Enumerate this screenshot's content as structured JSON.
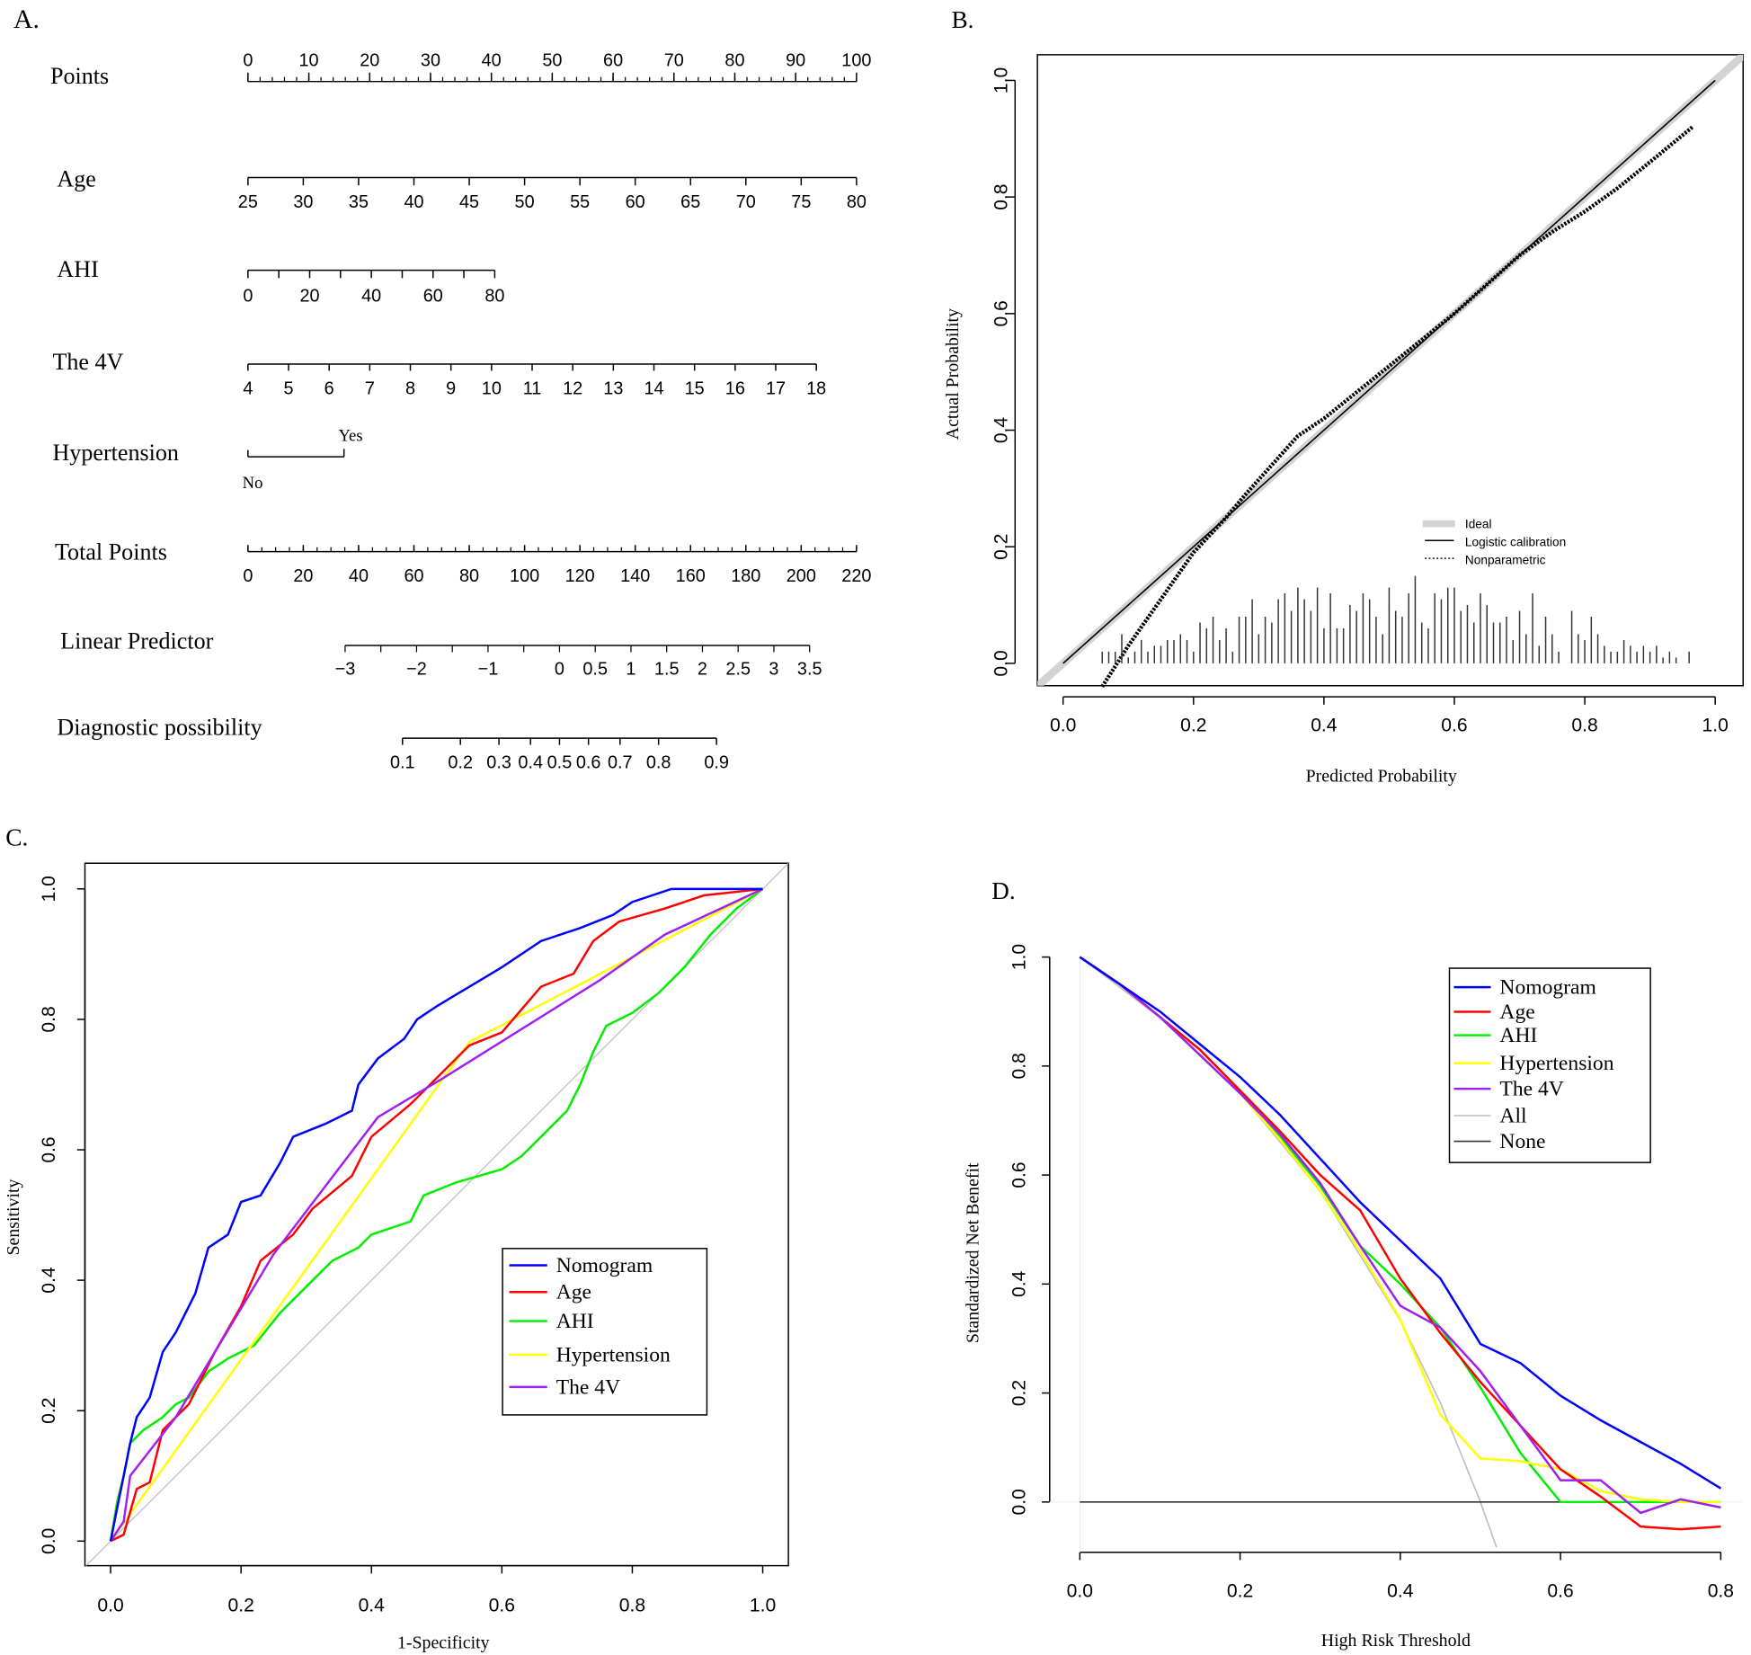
{
  "chart_data": [
    {
      "panel": "A.",
      "type": "nomogram",
      "rows": [
        {
          "label": "Points",
          "min": 0,
          "max": 100,
          "ticks": [
            0,
            10,
            20,
            30,
            40,
            50,
            60,
            70,
            80,
            90,
            100
          ]
        },
        {
          "label": "Age",
          "min": 25,
          "max": 80,
          "ticks": [
            25,
            30,
            35,
            40,
            45,
            50,
            55,
            60,
            65,
            70,
            75,
            80
          ]
        },
        {
          "label": "AHI",
          "min": 0,
          "max": 80,
          "ticks": [
            0,
            20,
            40,
            60,
            80
          ]
        },
        {
          "label": "The 4V",
          "min": 4,
          "max": 18,
          "ticks": [
            4,
            5,
            6,
            7,
            8,
            9,
            10,
            11,
            12,
            13,
            14,
            15,
            16,
            17,
            18
          ]
        },
        {
          "label": "Hypertension",
          "categories": [
            "No",
            "Yes"
          ]
        },
        {
          "label": "Total Points",
          "min": 0,
          "max": 220,
          "ticks": [
            0,
            20,
            40,
            60,
            80,
            100,
            120,
            140,
            160,
            180,
            200,
            220
          ]
        },
        {
          "label": "Linear Predictor",
          "min": -3,
          "max": 3.5,
          "ticks": [
            "−3",
            "−2",
            "−1",
            "0",
            "0.5",
            "1",
            "1.5",
            "2",
            "2.5",
            "3",
            "3.5"
          ],
          "tick_values": [
            -3,
            -2,
            -1,
            0,
            0.5,
            1,
            1.5,
            2,
            2.5,
            3,
            3.5
          ]
        },
        {
          "label": "Diagnostic possibility",
          "ticks": [
            "0.1",
            "0.2",
            "0.3",
            "0.4",
            "0.5",
            "0.6",
            "0.7",
            "0.8",
            "0.9"
          ],
          "tick_values": [
            0.1,
            0.2,
            0.3,
            0.4,
            0.5,
            0.6,
            0.7,
            0.8,
            0.9
          ]
        }
      ]
    },
    {
      "panel": "B.",
      "type": "line",
      "xlabel": "Predicted Probability",
      "ylabel": "Actual Probability",
      "xlim": [
        0,
        1
      ],
      "ylim": [
        0,
        1
      ],
      "xticks": [
        "0.0",
        "0.2",
        "0.4",
        "0.6",
        "0.8",
        "1.0"
      ],
      "yticks": [
        "0.0",
        "0.2",
        "0.4",
        "0.6",
        "0.8",
        "1.0"
      ],
      "legend": [
        "Ideal",
        "Logistic calibration",
        "Nonparametric"
      ],
      "legend_position": "bottom-right",
      "series": [
        {
          "name": "Ideal",
          "x": [
            -0.05,
            1.05
          ],
          "y": [
            -0.05,
            1.05
          ]
        },
        {
          "name": "Logistic calibration",
          "x": [
            0,
            1
          ],
          "y": [
            0,
            1
          ]
        },
        {
          "name": "Nonparametric",
          "x": [
            0.06,
            0.1,
            0.15,
            0.2,
            0.25,
            0.28,
            0.32,
            0.36,
            0.4,
            0.45,
            0.5,
            0.55,
            0.6,
            0.65,
            0.7,
            0.75,
            0.8,
            0.85,
            0.9,
            0.965
          ],
          "y": [
            -0.04,
            0.03,
            0.11,
            0.19,
            0.25,
            0.29,
            0.34,
            0.39,
            0.42,
            0.465,
            0.51,
            0.555,
            0.6,
            0.65,
            0.7,
            0.74,
            0.775,
            0.815,
            0.86,
            0.92
          ]
        }
      ],
      "rug": {
        "x_start": 0.06,
        "x_step": 0.01,
        "heights": [
          0.02,
          0.02,
          0.02,
          0.05,
          0.01,
          0.02,
          0.04,
          0.02,
          0.03,
          0.03,
          0.04,
          0.04,
          0.05,
          0.04,
          0.02,
          0.07,
          0.06,
          0.08,
          0.04,
          0.06,
          0.02,
          0.08,
          0.08,
          0.11,
          0.05,
          0.08,
          0.07,
          0.11,
          0.12,
          0.09,
          0.13,
          0.11,
          0.09,
          0.13,
          0.06,
          0.12,
          0.06,
          0.06,
          0.1,
          0.09,
          0.12,
          0.11,
          0.08,
          0.05,
          0.13,
          0.09,
          0.08,
          0.12,
          0.15,
          0.07,
          0.06,
          0.12,
          0.11,
          0.13,
          0.13,
          0.09,
          0.1,
          0.07,
          0.12,
          0.1,
          0.07,
          0.07,
          0.08,
          0.04,
          0.09,
          0.05,
          0.12,
          0.03,
          0.08,
          0.05,
          0.02,
          0,
          0.09,
          0.05,
          0.04,
          0.08,
          0.05,
          0.03,
          0.02,
          0.02,
          0.04,
          0.03,
          0.02,
          0.03,
          0.02,
          0.03,
          0.01,
          0.02,
          0.01,
          0,
          0.02
        ]
      }
    },
    {
      "panel": "C.",
      "type": "line",
      "xlabel": "1-Specificity",
      "ylabel": "Sensitivity",
      "xlim": [
        0,
        1
      ],
      "ylim": [
        0,
        1
      ],
      "xticks": [
        "0.0",
        "0.2",
        "0.4",
        "0.6",
        "0.8",
        "1.0"
      ],
      "yticks": [
        "0.0",
        "0.2",
        "0.4",
        "0.6",
        "0.8",
        "1.0"
      ],
      "legend_position": "bottom-right",
      "series": [
        {
          "name": "Nomogram",
          "color": "#0000ff",
          "x": [
            0,
            0.01,
            0.02,
            0.03,
            0.04,
            0.06,
            0.08,
            0.1,
            0.13,
            0.15,
            0.18,
            0.2,
            0.23,
            0.26,
            0.28,
            0.33,
            0.37,
            0.38,
            0.41,
            0.45,
            0.47,
            0.5,
            0.55,
            0.6,
            0.66,
            0.72,
            0.77,
            0.8,
            0.86,
            1
          ],
          "y": [
            0,
            0.05,
            0.1,
            0.15,
            0.19,
            0.22,
            0.29,
            0.32,
            0.38,
            0.45,
            0.47,
            0.52,
            0.53,
            0.58,
            0.62,
            0.64,
            0.66,
            0.7,
            0.74,
            0.77,
            0.8,
            0.82,
            0.85,
            0.88,
            0.92,
            0.94,
            0.96,
            0.98,
            1,
            1
          ]
        },
        {
          "name": "Age",
          "color": "#ff0000",
          "x": [
            0,
            0.02,
            0.04,
            0.06,
            0.08,
            0.12,
            0.16,
            0.2,
            0.23,
            0.28,
            0.31,
            0.37,
            0.4,
            0.46,
            0.55,
            0.6,
            0.66,
            0.71,
            0.74,
            0.78,
            0.85,
            0.91,
            1
          ],
          "y": [
            0,
            0.01,
            0.08,
            0.09,
            0.17,
            0.21,
            0.29,
            0.36,
            0.43,
            0.47,
            0.51,
            0.56,
            0.62,
            0.67,
            0.76,
            0.78,
            0.85,
            0.87,
            0.92,
            0.95,
            0.97,
            0.99,
            1
          ]
        },
        {
          "name": "AHI",
          "color": "#00ee00",
          "x": [
            0,
            0.01,
            0.02,
            0.03,
            0.05,
            0.08,
            0.1,
            0.12,
            0.15,
            0.18,
            0.22,
            0.26,
            0.3,
            0.34,
            0.38,
            0.4,
            0.46,
            0.48,
            0.53,
            0.6,
            0.63,
            0.67,
            0.7,
            0.72,
            0.74,
            0.76,
            0.8,
            0.84,
            0.88,
            0.92,
            0.96,
            1
          ],
          "y": [
            0,
            0.06,
            0.1,
            0.15,
            0.17,
            0.19,
            0.21,
            0.22,
            0.26,
            0.28,
            0.3,
            0.35,
            0.39,
            0.43,
            0.45,
            0.47,
            0.49,
            0.53,
            0.55,
            0.57,
            0.59,
            0.63,
            0.66,
            0.7,
            0.75,
            0.79,
            0.81,
            0.84,
            0.88,
            0.93,
            0.97,
            1
          ]
        },
        {
          "name": "Hypertension",
          "color": "#ffff00",
          "x": [
            0,
            0.55,
            1
          ],
          "y": [
            0,
            0.765,
            1
          ]
        },
        {
          "name": "The 4V",
          "color": "#a020f0",
          "x": [
            0,
            0.02,
            0.03,
            0.1,
            0.25,
            0.41,
            0.51,
            0.75,
            0.85,
            1
          ],
          "y": [
            0,
            0.03,
            0.1,
            0.19,
            0.44,
            0.65,
            0.71,
            0.86,
            0.93,
            1
          ]
        },
        {
          "name": "reference",
          "color": "#bebebe",
          "x": [
            -0.04,
            1.04
          ],
          "y": [
            -0.04,
            1.04
          ]
        }
      ]
    },
    {
      "panel": "D.",
      "type": "line",
      "xlabel": "High Risk Threshold",
      "ylabel": "Standardized Net Benefit",
      "xlim": [
        0,
        0.8
      ],
      "ylim": [
        -0.09,
        1.0
      ],
      "xticks": [
        "0.0",
        "0.2",
        "0.4",
        "0.6",
        "0.8"
      ],
      "yticks": [
        "0.0",
        "0.2",
        "0.4",
        "0.6",
        "0.8",
        "1.0"
      ],
      "legend_position": "top-right",
      "x": [
        0,
        0.05,
        0.1,
        0.15,
        0.2,
        0.25,
        0.3,
        0.35,
        0.4,
        0.45,
        0.5,
        0.55,
        0.6,
        0.65,
        0.7,
        0.75,
        0.8
      ],
      "series": [
        {
          "name": "Nomogram",
          "color": "#0000ff",
          "values": [
            1,
            0.95,
            0.9,
            0.84,
            0.78,
            0.71,
            0.63,
            0.55,
            0.48,
            0.41,
            0.29,
            0.255,
            0.195,
            0.15,
            0.11,
            0.07,
            0.025
          ]
        },
        {
          "name": "Age",
          "color": "#ff0000",
          "values": [
            1,
            0.95,
            0.89,
            0.83,
            0.755,
            0.68,
            0.6,
            0.535,
            0.41,
            0.31,
            0.22,
            0.14,
            0.06,
            0.01,
            -0.045,
            -0.05,
            -0.045
          ]
        },
        {
          "name": "AHI",
          "color": "#00ee00",
          "values": [
            1,
            0.95,
            0.89,
            0.82,
            0.75,
            0.67,
            0.58,
            0.47,
            0.4,
            0.32,
            0.21,
            0.09,
            0,
            0,
            0,
            0,
            0
          ]
        },
        {
          "name": "Hypertension",
          "color": "#ffff00",
          "values": [
            1,
            0.95,
            0.89,
            0.82,
            0.75,
            0.665,
            0.57,
            0.46,
            0.335,
            0.16,
            0.08,
            0.075,
            0.06,
            0.02,
            0.005,
            0,
            0
          ]
        },
        {
          "name": "The 4V",
          "color": "#a020f0",
          "values": [
            1,
            0.95,
            0.89,
            0.82,
            0.75,
            0.675,
            0.585,
            0.47,
            0.36,
            0.32,
            0.24,
            0.14,
            0.04,
            0.04,
            -0.02,
            0.005,
            -0.01
          ]
        },
        {
          "name": "All",
          "color": "#bebebe",
          "x": [
            0,
            0.1,
            0.2,
            0.3,
            0.4,
            0.45,
            0.5,
            0.52
          ],
          "values": [
            1,
            0.889,
            0.75,
            0.571,
            0.333,
            0.182,
            0,
            -0.083
          ]
        },
        {
          "name": "None",
          "color": "#333333",
          "x": [
            0,
            0.8
          ],
          "values": [
            0,
            0
          ]
        }
      ]
    }
  ]
}
